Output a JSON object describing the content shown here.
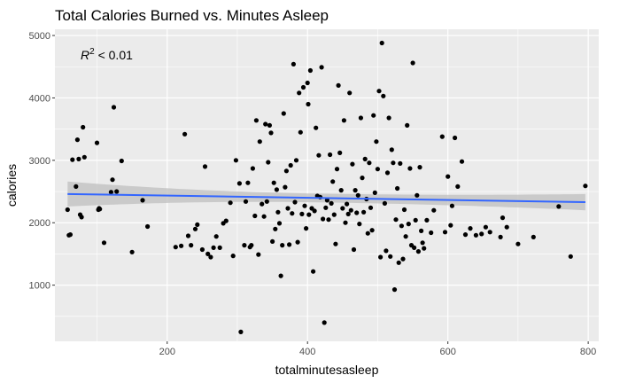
{
  "chart_data": {
    "type": "scatter",
    "title": "Total Calories Burned vs. Minutes Asleep",
    "xlabel": "totalminutesasleep",
    "ylabel": "calories",
    "xlim": [
      40,
      815
    ],
    "ylim": [
      100,
      5100
    ],
    "xticks": [
      200,
      400,
      600,
      800
    ],
    "yticks": [
      1000,
      2000,
      3000,
      4000,
      5000
    ],
    "xtick_labels": [
      "200",
      "400",
      "600",
      "800"
    ],
    "ytick_labels": [
      "1000",
      "2000",
      "3000",
      "4000",
      "5000"
    ],
    "grid": true,
    "annotation": {
      "base": "R",
      "sup": "2",
      "rest": " < 0.01"
    },
    "colors": {
      "panel": "#ebebeb",
      "grid": "#ffffff",
      "point": "#000000",
      "line": "#3366ff",
      "band": "#bfbfbf"
    },
    "regression": {
      "x": [
        58,
        796
      ],
      "y": [
        2460,
        2330
      ],
      "ci_half_width": [
        200,
        130
      ],
      "ci_min_half_width": 70,
      "ci_center_x": 420
    },
    "points": [
      [
        58,
        2210
      ],
      [
        60,
        1800
      ],
      [
        62,
        1810
      ],
      [
        65,
        3010
      ],
      [
        70,
        2580
      ],
      [
        72,
        3330
      ],
      [
        74,
        3020
      ],
      [
        76,
        2130
      ],
      [
        78,
        2090
      ],
      [
        80,
        3530
      ],
      [
        82,
        3050
      ],
      [
        100,
        3280
      ],
      [
        102,
        2210
      ],
      [
        103,
        2230
      ],
      [
        104,
        2220
      ],
      [
        110,
        1680
      ],
      [
        120,
        2490
      ],
      [
        122,
        2690
      ],
      [
        124,
        3850
      ],
      [
        128,
        2500
      ],
      [
        135,
        2990
      ],
      [
        150,
        1530
      ],
      [
        165,
        2360
      ],
      [
        172,
        1940
      ],
      [
        212,
        1610
      ],
      [
        220,
        1630
      ],
      [
        225,
        3420
      ],
      [
        230,
        1790
      ],
      [
        234,
        1640
      ],
      [
        240,
        1900
      ],
      [
        243,
        1970
      ],
      [
        250,
        1570
      ],
      [
        254,
        2900
      ],
      [
        258,
        1500
      ],
      [
        262,
        1450
      ],
      [
        266,
        1600
      ],
      [
        270,
        1780
      ],
      [
        275,
        1600
      ],
      [
        280,
        1990
      ],
      [
        284,
        2030
      ],
      [
        290,
        2320
      ],
      [
        294,
        1470
      ],
      [
        298,
        3000
      ],
      [
        303,
        2630
      ],
      [
        305,
        250
      ],
      [
        310,
        1640
      ],
      [
        312,
        2340
      ],
      [
        315,
        2640
      ],
      [
        318,
        1610
      ],
      [
        320,
        1640
      ],
      [
        322,
        2870
      ],
      [
        325,
        2110
      ],
      [
        327,
        3640
      ],
      [
        330,
        1490
      ],
      [
        332,
        3300
      ],
      [
        335,
        2300
      ],
      [
        338,
        2100
      ],
      [
        340,
        3580
      ],
      [
        342,
        2340
      ],
      [
        344,
        2970
      ],
      [
        346,
        3560
      ],
      [
        348,
        3440
      ],
      [
        350,
        1700
      ],
      [
        352,
        2640
      ],
      [
        354,
        1900
      ],
      [
        356,
        2530
      ],
      [
        358,
        2170
      ],
      [
        360,
        1990
      ],
      [
        362,
        1150
      ],
      [
        364,
        1640
      ],
      [
        366,
        3750
      ],
      [
        368,
        2570
      ],
      [
        370,
        2830
      ],
      [
        372,
        2230
      ],
      [
        374,
        1650
      ],
      [
        376,
        2920
      ],
      [
        378,
        2150
      ],
      [
        380,
        4540
      ],
      [
        382,
        2330
      ],
      [
        384,
        3000
      ],
      [
        386,
        1690
      ],
      [
        388,
        4080
      ],
      [
        390,
        3450
      ],
      [
        392,
        2140
      ],
      [
        394,
        4170
      ],
      [
        396,
        2270
      ],
      [
        398,
        1910
      ],
      [
        400,
        4240
      ],
      [
        401,
        3900
      ],
      [
        402,
        2130
      ],
      [
        404,
        4440
      ],
      [
        406,
        2230
      ],
      [
        408,
        1220
      ],
      [
        410,
        2190
      ],
      [
        412,
        3520
      ],
      [
        414,
        2430
      ],
      [
        416,
        3080
      ],
      [
        418,
        2410
      ],
      [
        420,
        4490
      ],
      [
        422,
        2060
      ],
      [
        424,
        400
      ],
      [
        426,
        2240
      ],
      [
        428,
        2360
      ],
      [
        430,
        2050
      ],
      [
        432,
        3090
      ],
      [
        434,
        2310
      ],
      [
        436,
        2660
      ],
      [
        438,
        2130
      ],
      [
        440,
        1660
      ],
      [
        442,
        2860
      ],
      [
        444,
        4200
      ],
      [
        446,
        3120
      ],
      [
        448,
        2520
      ],
      [
        450,
        2230
      ],
      [
        452,
        3640
      ],
      [
        454,
        2000
      ],
      [
        456,
        2300
      ],
      [
        458,
        2140
      ],
      [
        460,
        4080
      ],
      [
        462,
        2200
      ],
      [
        464,
        2940
      ],
      [
        466,
        1570
      ],
      [
        468,
        2520
      ],
      [
        470,
        2160
      ],
      [
        472,
        2440
      ],
      [
        474,
        1980
      ],
      [
        476,
        3680
      ],
      [
        478,
        2720
      ],
      [
        480,
        2170
      ],
      [
        482,
        3020
      ],
      [
        484,
        2380
      ],
      [
        486,
        1830
      ],
      [
        488,
        2960
      ],
      [
        490,
        2240
      ],
      [
        492,
        1880
      ],
      [
        494,
        3720
      ],
      [
        496,
        2480
      ],
      [
        498,
        3300
      ],
      [
        500,
        2860
      ],
      [
        502,
        4110
      ],
      [
        504,
        1450
      ],
      [
        506,
        4880
      ],
      [
        508,
        4030
      ],
      [
        510,
        2310
      ],
      [
        512,
        1550
      ],
      [
        514,
        2800
      ],
      [
        516,
        3680
      ],
      [
        518,
        1460
      ],
      [
        520,
        3170
      ],
      [
        522,
        2960
      ],
      [
        524,
        930
      ],
      [
        526,
        2050
      ],
      [
        528,
        2550
      ],
      [
        530,
        1360
      ],
      [
        532,
        2950
      ],
      [
        534,
        1950
      ],
      [
        536,
        1420
      ],
      [
        538,
        2210
      ],
      [
        540,
        1780
      ],
      [
        542,
        3560
      ],
      [
        544,
        1980
      ],
      [
        546,
        2870
      ],
      [
        548,
        1640
      ],
      [
        550,
        4560
      ],
      [
        552,
        1600
      ],
      [
        554,
        2040
      ],
      [
        556,
        2440
      ],
      [
        558,
        1540
      ],
      [
        560,
        2890
      ],
      [
        562,
        1870
      ],
      [
        564,
        1680
      ],
      [
        566,
        1590
      ],
      [
        570,
        2040
      ],
      [
        576,
        1840
      ],
      [
        580,
        2200
      ],
      [
        592,
        3380
      ],
      [
        596,
        1850
      ],
      [
        600,
        2740
      ],
      [
        604,
        1960
      ],
      [
        606,
        2270
      ],
      [
        610,
        3360
      ],
      [
        614,
        2580
      ],
      [
        620,
        2980
      ],
      [
        625,
        1810
      ],
      [
        632,
        1910
      ],
      [
        640,
        1800
      ],
      [
        648,
        1820
      ],
      [
        654,
        1930
      ],
      [
        660,
        1850
      ],
      [
        675,
        1770
      ],
      [
        678,
        2080
      ],
      [
        684,
        1930
      ],
      [
        700,
        1660
      ],
      [
        722,
        1770
      ],
      [
        758,
        2260
      ],
      [
        775,
        1460
      ],
      [
        796,
        2590
      ]
    ]
  }
}
